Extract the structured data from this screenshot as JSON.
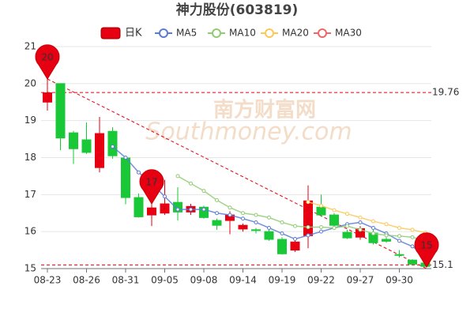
{
  "chart_data": {
    "type": "candlestick",
    "title": "神力股份(603819)",
    "watermark": [
      "南方财富网",
      "Southmoney.com"
    ],
    "categories": [
      "08-23",
      null,
      null,
      "08-26",
      null,
      null,
      "08-31",
      null,
      null,
      "09-05",
      null,
      null,
      "09-08",
      null,
      null,
      "09-14",
      null,
      null,
      "09-19",
      null,
      null,
      "09-22",
      null,
      null,
      "09-27",
      null,
      null,
      "09-30",
      null,
      null
    ],
    "candle_name": "日K",
    "up_color": "#e60012",
    "down_color": "#19c837",
    "open": [
      19.5,
      20.0,
      18.67,
      18.48,
      17.73,
      18.71,
      17.99,
      16.92,
      16.45,
      16.5,
      16.79,
      16.53,
      16.66,
      16.3,
      16.3,
      16.07,
      16.05,
      16.0,
      15.79,
      15.5,
      15.89,
      16.66,
      16.45,
      15.98,
      15.85,
      15.96,
      15.79,
      15.38,
      15.23,
      15.15
    ],
    "close": [
      19.75,
      18.53,
      18.24,
      18.14,
      18.65,
      18.05,
      16.92,
      16.4,
      16.64,
      16.75,
      16.53,
      16.68,
      16.38,
      16.17,
      16.45,
      16.17,
      16.04,
      15.79,
      15.4,
      15.72,
      16.83,
      16.45,
      16.17,
      15.83,
      16.08,
      15.7,
      15.74,
      15.36,
      15.12,
      15.06
    ],
    "high": [
      20.13,
      20.0,
      18.72,
      18.95,
      19.1,
      18.82,
      18.02,
      17.03,
      16.9,
      17.4,
      17.2,
      16.75,
      16.7,
      16.35,
      16.55,
      16.22,
      16.1,
      16.05,
      15.85,
      15.75,
      17.25,
      17.0,
      16.5,
      16.05,
      16.15,
      16.05,
      15.85,
      15.5,
      15.25,
      15.2
    ],
    "low": [
      19.27,
      18.2,
      17.83,
      18.1,
      17.6,
      17.97,
      16.74,
      16.38,
      16.15,
      16.45,
      16.3,
      16.45,
      16.35,
      16.05,
      15.93,
      16.0,
      15.95,
      15.75,
      15.38,
      15.45,
      15.55,
      16.4,
      16.1,
      15.8,
      15.78,
      15.65,
      15.7,
      15.3,
      15.1,
      15.05
    ],
    "series": [
      {
        "name": "MA5",
        "color": "#5b7bd5",
        "values": [
          null,
          null,
          null,
          null,
          null,
          18.3,
          18.0,
          17.6,
          17.3,
          16.95,
          16.6,
          16.6,
          16.6,
          16.5,
          16.45,
          16.35,
          16.25,
          16.1,
          15.95,
          15.8,
          15.9,
          16.0,
          16.1,
          16.2,
          16.25,
          16.1,
          15.95,
          15.75,
          15.6,
          15.35
        ]
      },
      {
        "name": "MA10",
        "color": "#91cc75",
        "values": [
          null,
          null,
          null,
          null,
          null,
          null,
          null,
          null,
          null,
          null,
          17.5,
          17.3,
          17.1,
          16.85,
          16.65,
          16.5,
          16.45,
          16.38,
          16.25,
          16.15,
          16.12,
          16.12,
          16.1,
          16.15,
          16.05,
          15.95,
          15.9,
          15.88,
          15.85,
          15.75
        ]
      },
      {
        "name": "MA20",
        "color": "#fac858",
        "values": [
          null,
          null,
          null,
          null,
          null,
          null,
          null,
          null,
          null,
          null,
          null,
          null,
          null,
          null,
          null,
          null,
          null,
          null,
          null,
          null,
          16.8,
          16.7,
          16.58,
          16.48,
          16.38,
          16.28,
          16.2,
          16.1,
          16.05,
          15.97
        ]
      },
      {
        "name": "MA30",
        "color": "#ee6666",
        "values": [
          null,
          null,
          null,
          null,
          null,
          null,
          null,
          null,
          null,
          null,
          null,
          null,
          null,
          null,
          null,
          null,
          null,
          null,
          null,
          null,
          null,
          null,
          null,
          null,
          null,
          null,
          null,
          null,
          null,
          null
        ]
      }
    ],
    "ref_lines": [
      19.76,
      15.1
    ],
    "pins": [
      20,
      17,
      15
    ],
    "ylim": [
      15,
      21
    ],
    "yticks": [
      15,
      16,
      17,
      18,
      19,
      20,
      21
    ],
    "grid": true
  }
}
